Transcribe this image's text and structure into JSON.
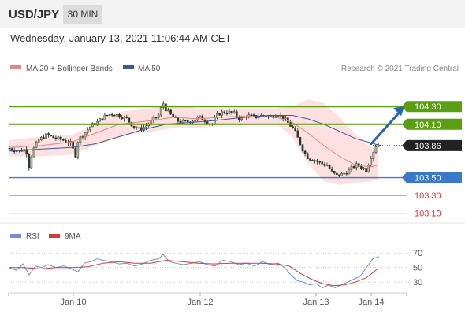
{
  "header": {
    "pair": "USD/JPY",
    "timeframe": "30 MIN",
    "datetime": "Wednesday, January 13, 2021 11:06:44 AM CET"
  },
  "legend": {
    "ma20": "MA 20 + Bollinger Bands",
    "ma50": "MA 50",
    "credit": "Research © 2021 Trading Central",
    "rsi": "RSI",
    "rsi_ma": "9MA"
  },
  "colors": {
    "green": "#5a9e12",
    "blue": "#3a78c9",
    "red": "#d33b3b",
    "current": "#222222",
    "arrow": "#2765b0",
    "ma20": "#e98585",
    "ma50": "#385a9c",
    "bollinger": "#fde0e0",
    "bull": "#a6b89a",
    "bear": "#2e3a28"
  },
  "chart_data": [
    {
      "type": "candlestick",
      "title": "USD/JPY 30 MIN",
      "ylim": [
        103.0,
        104.55
      ],
      "x_ticks": [
        "Jan 10",
        "Jan 12",
        "Jan 13",
        "Jan 14"
      ],
      "levels": [
        {
          "value": 104.3,
          "label": "104.30",
          "kind": "resistance"
        },
        {
          "value": 104.1,
          "label": "104.10",
          "kind": "resistance"
        },
        {
          "value": 103.86,
          "label": "103.86",
          "kind": "current"
        },
        {
          "value": 103.5,
          "label": "103.50",
          "kind": "support"
        },
        {
          "value": 103.3,
          "label": "103.30",
          "kind": "support"
        },
        {
          "value": 103.1,
          "label": "103.10",
          "kind": "support"
        }
      ],
      "projection": {
        "from": 103.88,
        "to": 104.3
      },
      "close_path": [
        [
          0,
          103.83
        ],
        [
          12,
          103.8
        ],
        [
          22,
          103.82
        ],
        [
          26,
          103.62
        ],
        [
          30,
          103.8
        ],
        [
          38,
          103.92
        ],
        [
          48,
          103.98
        ],
        [
          60,
          103.94
        ],
        [
          70,
          103.92
        ],
        [
          80,
          103.88
        ],
        [
          84,
          103.72
        ],
        [
          88,
          103.92
        ],
        [
          96,
          104.0
        ],
        [
          104,
          104.08
        ],
        [
          112,
          104.12
        ],
        [
          120,
          104.18
        ],
        [
          130,
          104.22
        ],
        [
          140,
          104.2
        ],
        [
          150,
          104.16
        ],
        [
          158,
          104.08
        ],
        [
          166,
          104.04
        ],
        [
          174,
          104.08
        ],
        [
          182,
          104.14
        ],
        [
          190,
          104.2
        ],
        [
          196,
          104.34
        ],
        [
          200,
          104.26
        ],
        [
          206,
          104.2
        ],
        [
          214,
          104.14
        ],
        [
          222,
          104.12
        ],
        [
          232,
          104.14
        ],
        [
          242,
          104.18
        ],
        [
          250,
          104.14
        ],
        [
          258,
          104.1
        ],
        [
          266,
          104.22
        ],
        [
          276,
          104.24
        ],
        [
          286,
          104.22
        ],
        [
          294,
          104.16
        ],
        [
          302,
          104.2
        ],
        [
          312,
          104.18
        ],
        [
          322,
          104.2
        ],
        [
          332,
          104.18
        ],
        [
          340,
          104.22
        ],
        [
          348,
          104.18
        ],
        [
          356,
          104.1
        ],
        [
          362,
          104.04
        ],
        [
          368,
          103.92
        ],
        [
          374,
          103.8
        ],
        [
          380,
          103.72
        ],
        [
          388,
          103.7
        ],
        [
          396,
          103.66
        ],
        [
          404,
          103.64
        ],
        [
          410,
          103.56
        ],
        [
          416,
          103.52
        ],
        [
          424,
          103.54
        ],
        [
          432,
          103.58
        ],
        [
          440,
          103.64
        ],
        [
          448,
          103.62
        ],
        [
          454,
          103.58
        ],
        [
          458,
          103.7
        ],
        [
          462,
          103.78
        ],
        [
          466,
          103.86
        ],
        [
          470,
          103.88
        ]
      ],
      "ma20_path": [
        [
          0,
          103.84
        ],
        [
          40,
          103.86
        ],
        [
          80,
          103.9
        ],
        [
          110,
          104.0
        ],
        [
          140,
          104.1
        ],
        [
          180,
          104.14
        ],
        [
          210,
          104.18
        ],
        [
          240,
          104.16
        ],
        [
          270,
          104.18
        ],
        [
          300,
          104.19
        ],
        [
          340,
          104.18
        ],
        [
          360,
          104.12
        ],
        [
          380,
          104.0
        ],
        [
          400,
          103.86
        ],
        [
          420,
          103.74
        ],
        [
          440,
          103.64
        ],
        [
          460,
          103.62
        ],
        [
          468,
          103.64
        ]
      ],
      "ma50_path": [
        [
          0,
          103.8
        ],
        [
          40,
          103.82
        ],
        [
          80,
          103.84
        ],
        [
          110,
          103.88
        ],
        [
          140,
          103.96
        ],
        [
          170,
          104.04
        ],
        [
          200,
          104.1
        ],
        [
          230,
          104.12
        ],
        [
          260,
          104.14
        ],
        [
          290,
          104.17
        ],
        [
          330,
          104.2
        ],
        [
          360,
          104.2
        ],
        [
          380,
          104.16
        ],
        [
          400,
          104.1
        ],
        [
          420,
          104.02
        ],
        [
          440,
          103.94
        ],
        [
          460,
          103.89
        ],
        [
          472,
          103.86
        ]
      ],
      "bollinger_upper": [
        [
          0,
          103.92
        ],
        [
          40,
          103.96
        ],
        [
          80,
          103.98
        ],
        [
          110,
          104.1
        ],
        [
          140,
          104.24
        ],
        [
          180,
          104.28
        ],
        [
          210,
          104.32
        ],
        [
          240,
          104.28
        ],
        [
          270,
          104.28
        ],
        [
          300,
          104.28
        ],
        [
          340,
          104.28
        ],
        [
          360,
          104.3
        ],
        [
          380,
          104.38
        ],
        [
          400,
          104.34
        ],
        [
          420,
          104.18
        ],
        [
          440,
          103.98
        ],
        [
          460,
          103.84
        ],
        [
          468,
          103.82
        ]
      ],
      "bollinger_lower": [
        [
          0,
          103.74
        ],
        [
          40,
          103.74
        ],
        [
          80,
          103.76
        ],
        [
          110,
          103.86
        ],
        [
          140,
          103.96
        ],
        [
          180,
          104.02
        ],
        [
          210,
          104.06
        ],
        [
          240,
          104.06
        ],
        [
          270,
          104.08
        ],
        [
          300,
          104.1
        ],
        [
          340,
          104.1
        ],
        [
          360,
          103.96
        ],
        [
          380,
          103.66
        ],
        [
          400,
          103.46
        ],
        [
          420,
          103.42
        ],
        [
          440,
          103.44
        ],
        [
          460,
          103.46
        ],
        [
          468,
          103.48
        ]
      ]
    },
    {
      "type": "line",
      "title": "RSI",
      "ylim": [
        15,
        80
      ],
      "y_ticks": [
        70,
        50,
        30
      ],
      "series": [
        {
          "name": "RSI",
          "values": [
            [
              0,
              50
            ],
            [
              10,
              46
            ],
            [
              18,
              55
            ],
            [
              26,
              40
            ],
            [
              34,
              52
            ],
            [
              42,
              50
            ],
            [
              50,
              54
            ],
            [
              60,
              50
            ],
            [
              70,
              52
            ],
            [
              80,
              48
            ],
            [
              88,
              44
            ],
            [
              96,
              56
            ],
            [
              104,
              58
            ],
            [
              112,
              62
            ],
            [
              120,
              60
            ],
            [
              130,
              58
            ],
            [
              140,
              55
            ],
            [
              150,
              56
            ],
            [
              160,
              52
            ],
            [
              170,
              55
            ],
            [
              180,
              60
            ],
            [
              190,
              62
            ],
            [
              196,
              68
            ],
            [
              204,
              58
            ],
            [
              212,
              56
            ],
            [
              222,
              54
            ],
            [
              232,
              56
            ],
            [
              242,
              58
            ],
            [
              252,
              54
            ],
            [
              262,
              52
            ],
            [
              272,
              60
            ],
            [
              282,
              58
            ],
            [
              292,
              54
            ],
            [
              302,
              56
            ],
            [
              312,
              52
            ],
            [
              322,
              58
            ],
            [
              332,
              54
            ],
            [
              342,
              56
            ],
            [
              350,
              50
            ],
            [
              358,
              40
            ],
            [
              366,
              32
            ],
            [
              374,
              30
            ],
            [
              382,
              26
            ],
            [
              390,
              28
            ],
            [
              398,
              22
            ],
            [
              406,
              26
            ],
            [
              414,
              22
            ],
            [
              422,
              26
            ],
            [
              430,
              30
            ],
            [
              438,
              34
            ],
            [
              446,
              38
            ],
            [
              454,
              50
            ],
            [
              462,
              62
            ],
            [
              470,
              65
            ]
          ]
        },
        {
          "name": "9MA",
          "values": [
            [
              0,
              50
            ],
            [
              20,
              50
            ],
            [
              40,
              48
            ],
            [
              60,
              50
            ],
            [
              80,
              50
            ],
            [
              100,
              51
            ],
            [
              120,
              56
            ],
            [
              140,
              58
            ],
            [
              160,
              56
            ],
            [
              180,
              56
            ],
            [
              200,
              60
            ],
            [
              220,
              58
            ],
            [
              240,
              56
            ],
            [
              260,
              55
            ],
            [
              280,
              56
            ],
            [
              300,
              56
            ],
            [
              320,
              56
            ],
            [
              340,
              55
            ],
            [
              356,
              52
            ],
            [
              370,
              42
            ],
            [
              384,
              34
            ],
            [
              398,
              28
            ],
            [
              412,
              25
            ],
            [
              426,
              26
            ],
            [
              440,
              30
            ],
            [
              454,
              36
            ],
            [
              468,
              48
            ]
          ]
        }
      ]
    }
  ]
}
